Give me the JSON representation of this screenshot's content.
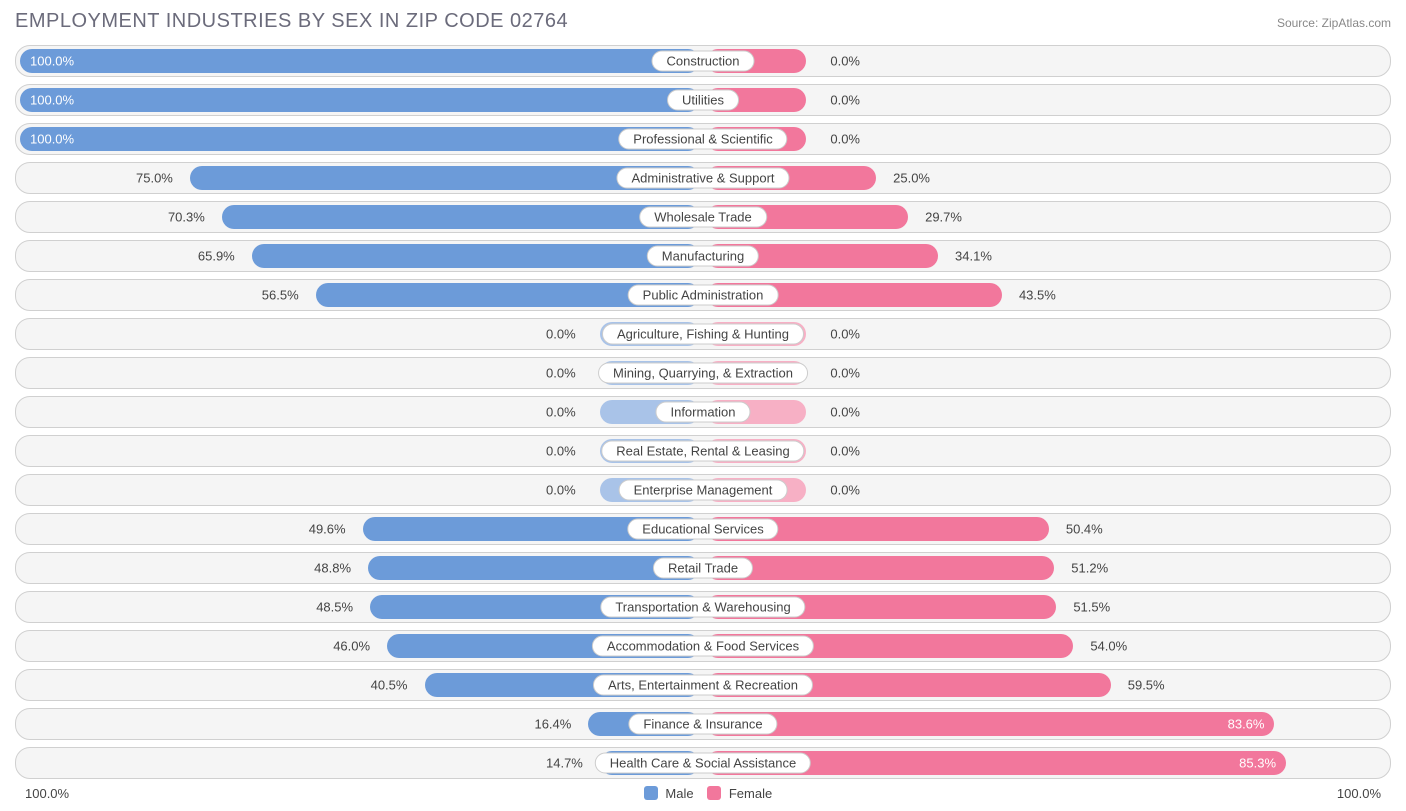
{
  "title": "EMPLOYMENT INDUSTRIES BY SEX IN ZIP CODE 02764",
  "source": "Source: ZipAtlas.com",
  "colors": {
    "male": "#6c9bd9",
    "female": "#f2779c",
    "male_faded": "#a9c3e8",
    "female_faded": "#f7b0c5",
    "row_bg": "#f5f5f5",
    "row_border": "#d0d0d0",
    "text": "#444444"
  },
  "axis": {
    "left": "100.0%",
    "right": "100.0%"
  },
  "legend": {
    "male": "Male",
    "female": "Female"
  },
  "half_width": 680,
  "min_bar": 100,
  "rows": [
    {
      "label": "Construction",
      "male": 100.0,
      "female": 0.0,
      "zero": false
    },
    {
      "label": "Utilities",
      "male": 100.0,
      "female": 0.0,
      "zero": false
    },
    {
      "label": "Professional & Scientific",
      "male": 100.0,
      "female": 0.0,
      "zero": false
    },
    {
      "label": "Administrative & Support",
      "male": 75.0,
      "female": 25.0,
      "zero": false
    },
    {
      "label": "Wholesale Trade",
      "male": 70.3,
      "female": 29.7,
      "zero": false
    },
    {
      "label": "Manufacturing",
      "male": 65.9,
      "female": 34.1,
      "zero": false
    },
    {
      "label": "Public Administration",
      "male": 56.5,
      "female": 43.5,
      "zero": false
    },
    {
      "label": "Agriculture, Fishing & Hunting",
      "male": 0.0,
      "female": 0.0,
      "zero": true
    },
    {
      "label": "Mining, Quarrying, & Extraction",
      "male": 0.0,
      "female": 0.0,
      "zero": true
    },
    {
      "label": "Information",
      "male": 0.0,
      "female": 0.0,
      "zero": true
    },
    {
      "label": "Real Estate, Rental & Leasing",
      "male": 0.0,
      "female": 0.0,
      "zero": true
    },
    {
      "label": "Enterprise Management",
      "male": 0.0,
      "female": 0.0,
      "zero": true
    },
    {
      "label": "Educational Services",
      "male": 49.6,
      "female": 50.4,
      "zero": false
    },
    {
      "label": "Retail Trade",
      "male": 48.8,
      "female": 51.2,
      "zero": false
    },
    {
      "label": "Transportation & Warehousing",
      "male": 48.5,
      "female": 51.5,
      "zero": false
    },
    {
      "label": "Accommodation & Food Services",
      "male": 46.0,
      "female": 54.0,
      "zero": false
    },
    {
      "label": "Arts, Entertainment & Recreation",
      "male": 40.5,
      "female": 59.5,
      "zero": false
    },
    {
      "label": "Finance & Insurance",
      "male": 16.4,
      "female": 83.6,
      "zero": false
    },
    {
      "label": "Health Care & Social Assistance",
      "male": 14.7,
      "female": 85.3,
      "zero": false
    }
  ]
}
